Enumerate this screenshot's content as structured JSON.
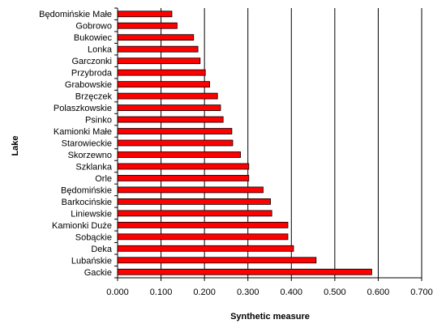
{
  "chart_data": {
    "type": "bar",
    "orientation": "horizontal",
    "title": "",
    "xlabel": "Synthetic measure",
    "ylabel": "Lake",
    "xlim": [
      0,
      0.7
    ],
    "xticks": [
      0,
      0.1,
      0.2,
      0.3,
      0.4,
      0.5,
      0.6,
      0.7
    ],
    "xtick_labels": [
      "0.000",
      "0.100",
      "0.200",
      "0.300",
      "0.400",
      "0.500",
      "0.600",
      "0.700"
    ],
    "grid": "vertical major gridlines",
    "legend": "none",
    "bar_color": "#ff0000",
    "bar_edge_color": "#000000",
    "categories": [
      "Będomińskie Małe",
      "Gobrowo",
      "Bukowiec",
      "Lonka",
      "Garczonki",
      "Przybroda",
      "Grabowskie",
      "Brzęczek",
      "Polaszkowskie",
      "Psinko",
      "Kamionki Małe",
      "Starowieckie",
      "Skorzewno",
      "Szklanka",
      "Orle",
      "Będomińskie",
      "Barkocińskie",
      "Liniewskie",
      "Kamionki Duże",
      "Sobąckie",
      "Deka",
      "Lubańskie",
      "Gackie"
    ],
    "values": [
      0.125,
      0.137,
      0.175,
      0.185,
      0.19,
      0.202,
      0.212,
      0.23,
      0.237,
      0.243,
      0.263,
      0.265,
      0.283,
      0.302,
      0.302,
      0.335,
      0.352,
      0.355,
      0.392,
      0.392,
      0.405,
      0.457,
      0.585
    ]
  }
}
